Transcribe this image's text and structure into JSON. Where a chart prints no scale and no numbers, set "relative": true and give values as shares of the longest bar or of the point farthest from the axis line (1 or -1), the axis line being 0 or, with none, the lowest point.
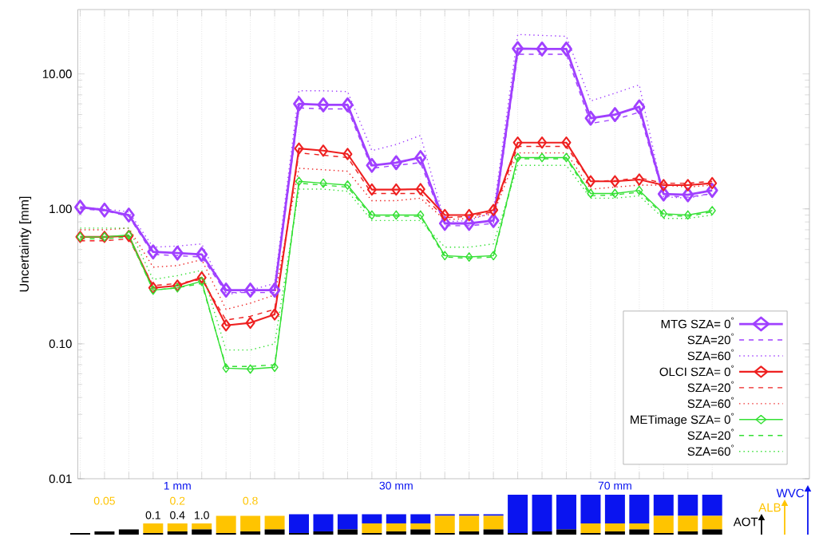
{
  "chart_data": [
    {
      "type": "line",
      "ylabel": "Uncertainty [mm]",
      "log": true,
      "grid": "x",
      "legend": "bottom right",
      "tick_labels": "y",
      "categories": [
        null,
        null,
        null,
        null,
        null,
        null,
        null,
        null,
        null,
        null,
        null,
        null,
        null,
        null,
        null,
        null,
        null,
        null,
        null,
        null,
        null,
        null,
        null,
        null,
        null,
        null,
        null
      ],
      "ylim": [
        0.01,
        30
      ],
      "yticks": [
        {
          "value": 0.01,
          "label": "0.01"
        },
        {
          "value": 0.1,
          "label": "0.10"
        },
        {
          "value": 1,
          "label": "1.00"
        },
        {
          "value": 10,
          "label": "10.00"
        }
      ],
      "series": [
        {
          "name": "MTG SZA= 0$^{°}$",
          "color": "#a040ff",
          "marker": "diamond",
          "line_style": "solid",
          "values": [
            1.03,
            0.98,
            0.9,
            0.48,
            0.47,
            0.46,
            0.25,
            0.25,
            0.25,
            6.0,
            5.9,
            5.9,
            2.1,
            2.2,
            2.4,
            0.78,
            0.78,
            0.82,
            15.4,
            15.3,
            15.3,
            4.7,
            5.0,
            5.7,
            1.29,
            1.27,
            1.37
          ]
        },
        {
          "name": "SZA=20$^{°}$",
          "color": "#a040ff",
          "marker": "none",
          "line_style": "dashed",
          "values": [
            1.0,
            0.97,
            0.88,
            0.46,
            0.45,
            0.44,
            0.24,
            0.24,
            0.24,
            5.6,
            5.5,
            5.5,
            2.0,
            2.1,
            2.2,
            0.75,
            0.75,
            0.78,
            14,
            14,
            14,
            4.3,
            4.6,
            5.2,
            1.25,
            1.22,
            1.3
          ]
        },
        {
          "name": "SZA=60$^{°}$",
          "color": "#a040ff",
          "marker": "none",
          "line_style": "dotted",
          "values": [
            1.02,
            1.0,
            0.95,
            0.52,
            0.53,
            0.55,
            0.23,
            0.25,
            0.28,
            7.5,
            7.5,
            7.4,
            2.7,
            3.0,
            3.5,
            0.8,
            0.82,
            0.95,
            19.6,
            19.3,
            19,
            6.3,
            7.2,
            8.3,
            1.23,
            1.2,
            1.3
          ]
        },
        {
          "name": "OLCI SZA= 0$^{°}$",
          "color": "#ee2020",
          "marker": "diamond",
          "line_style": "solid",
          "values": [
            0.62,
            0.62,
            0.63,
            0.26,
            0.27,
            0.31,
            0.137,
            0.143,
            0.165,
            2.8,
            2.7,
            2.55,
            1.39,
            1.39,
            1.4,
            0.9,
            0.9,
            0.98,
            3.1,
            3.1,
            3.1,
            1.6,
            1.6,
            1.65,
            1.5,
            1.5,
            1.55
          ]
        },
        {
          "name": "SZA=20$^{°}$",
          "color": "#ee2020",
          "marker": "none",
          "line_style": "dashed",
          "values": [
            0.58,
            0.58,
            0.6,
            0.27,
            0.28,
            0.3,
            0.15,
            0.16,
            0.18,
            2.6,
            2.5,
            2.4,
            1.3,
            1.3,
            1.3,
            0.86,
            0.88,
            0.95,
            2.9,
            2.9,
            2.9,
            1.6,
            1.62,
            1.7,
            1.55,
            1.55,
            1.6
          ]
        },
        {
          "name": "SZA=60$^{°}$",
          "color": "#ee2020",
          "marker": "none",
          "line_style": "dotted",
          "values": [
            0.7,
            0.7,
            0.72,
            0.37,
            0.38,
            0.42,
            0.18,
            0.2,
            0.23,
            2.0,
            1.95,
            1.9,
            1.15,
            1.15,
            1.2,
            0.83,
            0.85,
            0.92,
            2.6,
            2.6,
            2.6,
            1.4,
            1.45,
            1.5,
            1.5,
            1.45,
            1.5
          ]
        },
        {
          "name": "METimage SZA= 0$^{°}$",
          "color": "#33e033",
          "marker": "diamond",
          "line_style": "solid",
          "values": [
            0.62,
            0.62,
            0.64,
            0.25,
            0.26,
            0.29,
            0.066,
            0.065,
            0.067,
            1.6,
            1.55,
            1.5,
            0.9,
            0.9,
            0.9,
            0.45,
            0.44,
            0.45,
            2.4,
            2.4,
            2.4,
            1.3,
            1.3,
            1.37,
            0.92,
            0.9,
            0.97
          ]
        },
        {
          "name": "SZA=20$^{°}$",
          "color": "#33e033",
          "marker": "none",
          "line_style": "dashed",
          "values": [
            0.6,
            0.6,
            0.62,
            0.25,
            0.26,
            0.28,
            0.068,
            0.068,
            0.07,
            1.55,
            1.5,
            1.45,
            0.88,
            0.88,
            0.88,
            0.44,
            0.43,
            0.44,
            2.35,
            2.35,
            2.35,
            1.25,
            1.27,
            1.33,
            0.9,
            0.88,
            0.95
          ]
        },
        {
          "name": "SZA=60$^{°}$",
          "color": "#33e033",
          "marker": "none",
          "line_style": "dotted",
          "values": [
            0.72,
            0.72,
            0.72,
            0.3,
            0.32,
            0.35,
            0.09,
            0.09,
            0.1,
            1.4,
            1.4,
            1.35,
            0.82,
            0.82,
            0.82,
            0.52,
            0.52,
            0.55,
            2.1,
            2.1,
            2.1,
            1.2,
            1.2,
            1.25,
            0.85,
            0.85,
            0.9
          ]
        }
      ]
    },
    {
      "type": "bar",
      "stacked": true,
      "relative": true,
      "legend": "right",
      "categories": [
        null,
        null,
        null,
        null,
        null,
        null,
        null,
        null,
        null,
        null,
        null,
        null,
        null,
        null,
        null,
        null,
        null,
        null,
        null,
        null,
        null,
        null,
        null,
        null,
        null,
        null,
        null
      ],
      "annotations": [
        "1 mm",
        "30 mm",
        "70 mm",
        "0.05",
        "0.2",
        "0.8",
        "0.1",
        "0.4",
        "1.0"
      ],
      "series": [
        {
          "name": "AOT",
          "color": "#000000",
          "values": [
            0.04,
            0.08,
            0.13,
            0.04,
            0.08,
            0.13,
            0.04,
            0.08,
            0.13,
            0.04,
            0.08,
            0.13,
            0.04,
            0.08,
            0.13,
            0.04,
            0.08,
            0.13,
            0.04,
            0.08,
            0.13,
            0.04,
            0.08,
            0.13,
            0.04,
            0.08,
            0.13
          ]
        },
        {
          "name": "ALB",
          "color": "#ffc400",
          "values": [
            0,
            0,
            0,
            0.24,
            0.2,
            0.15,
            0.43,
            0.39,
            0.34,
            0,
            0,
            0,
            0.24,
            0.2,
            0.15,
            0.43,
            0.39,
            0.34,
            0,
            0,
            0,
            0.24,
            0.2,
            0.15,
            0.43,
            0.39,
            0.34
          ]
        },
        {
          "name": "WVC",
          "color": "#0a14f0",
          "values": [
            0,
            0,
            0,
            0,
            0,
            0,
            0,
            0,
            0,
            0.47,
            0.43,
            0.38,
            0.23,
            0.23,
            0.23,
            0.04,
            0.04,
            0.04,
            0.96,
            0.92,
            0.87,
            0.72,
            0.72,
            0.72,
            0.53,
            0.53,
            0.53
          ]
        }
      ]
    }
  ]
}
